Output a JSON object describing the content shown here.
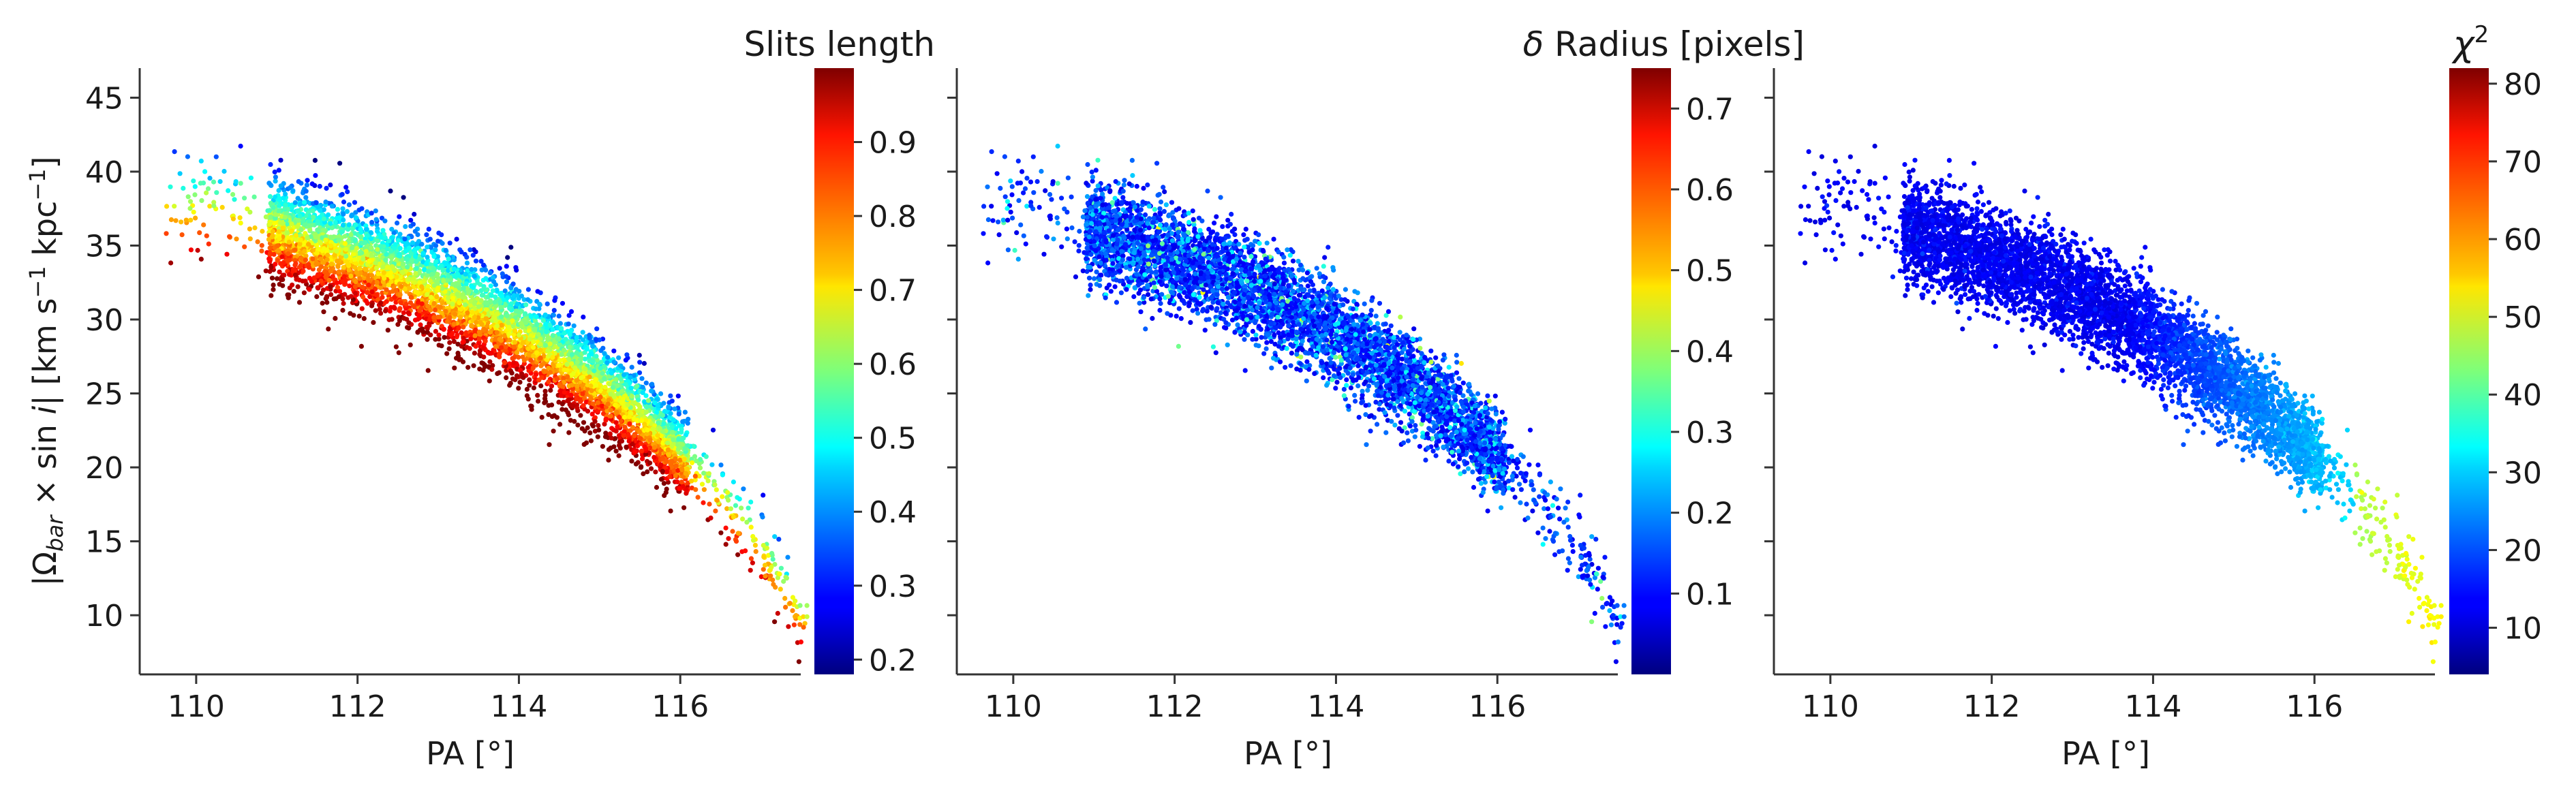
{
  "chart_data": [
    {
      "type": "scatter",
      "id": "panel1",
      "xlabel": "PA [°]",
      "ylabel": "|Ω_bar × sin i|  [km s⁻¹ kpc⁻¹]",
      "xlim": [
        109.3,
        118.0
      ],
      "ylim": [
        6.0,
        47.0
      ],
      "x_ticks": [
        110,
        112,
        114,
        116
      ],
      "y_ticks": [
        10,
        15,
        20,
        25,
        30,
        35,
        40,
        45
      ],
      "colorbar": {
        "label": "Slits length",
        "range": [
          0.18,
          1.0
        ],
        "ticks": [
          0.2,
          0.3,
          0.4,
          0.5,
          0.6,
          0.7,
          0.8,
          0.9
        ],
        "colormap": "jet"
      },
      "points_description": "dense band of points from PA ~110 (|Ω sin i| ~38) to PA ~117.5 (~8); color increases with lower Ω within the band",
      "series": [
        {
          "x": [
            109.7,
            110.6,
            111.0,
            111.5,
            112.0,
            112.5,
            113.0,
            113.5,
            114.0,
            114.5,
            115.0,
            115.5,
            116.0,
            116.5,
            117.0,
            117.5
          ],
          "y": [
            37.5,
            37.0,
            36.0,
            35.0,
            34.0,
            33.0,
            31.8,
            30.5,
            29.0,
            27.3,
            25.5,
            23.3,
            20.8,
            18.0,
            14.5,
            10.0
          ]
        }
      ],
      "grid": false,
      "legend": "none"
    },
    {
      "type": "scatter",
      "id": "panel2",
      "xlabel": "PA [°]",
      "xlim": [
        109.3,
        118.0
      ],
      "ylim": [
        6.0,
        47.0
      ],
      "x_ticks": [
        110,
        112,
        114,
        116
      ],
      "colorbar": {
        "label": "δ Radius [pixels]",
        "range": [
          0.0,
          0.75
        ],
        "ticks": [
          0.1,
          0.2,
          0.3,
          0.4,
          0.5,
          0.6,
          0.7
        ],
        "colormap": "jet"
      },
      "grid": false,
      "legend": "none"
    },
    {
      "type": "scatter",
      "id": "panel3",
      "xlabel": "PA [°]",
      "xlim": [
        109.3,
        118.0
      ],
      "ylim": [
        6.0,
        47.0
      ],
      "x_ticks": [
        110,
        112,
        114,
        116
      ],
      "colorbar": {
        "label": "χ²",
        "range": [
          4.0,
          82.0
        ],
        "ticks": [
          10,
          20,
          30,
          40,
          50,
          60,
          70,
          80
        ],
        "colormap": "jet"
      },
      "grid": false,
      "legend": "none"
    }
  ],
  "text": {
    "p1_xlabel": "PA [°]",
    "p2_xlabel": "PA [°]",
    "p3_xlabel": "PA [°]",
    "cb1_title": "Slits length",
    "cb2_title_delta": "δ",
    "cb2_title_rest": " Radius [pixels]",
    "cb3_title_chi": "χ",
    "cb3_title_sup": "2"
  }
}
